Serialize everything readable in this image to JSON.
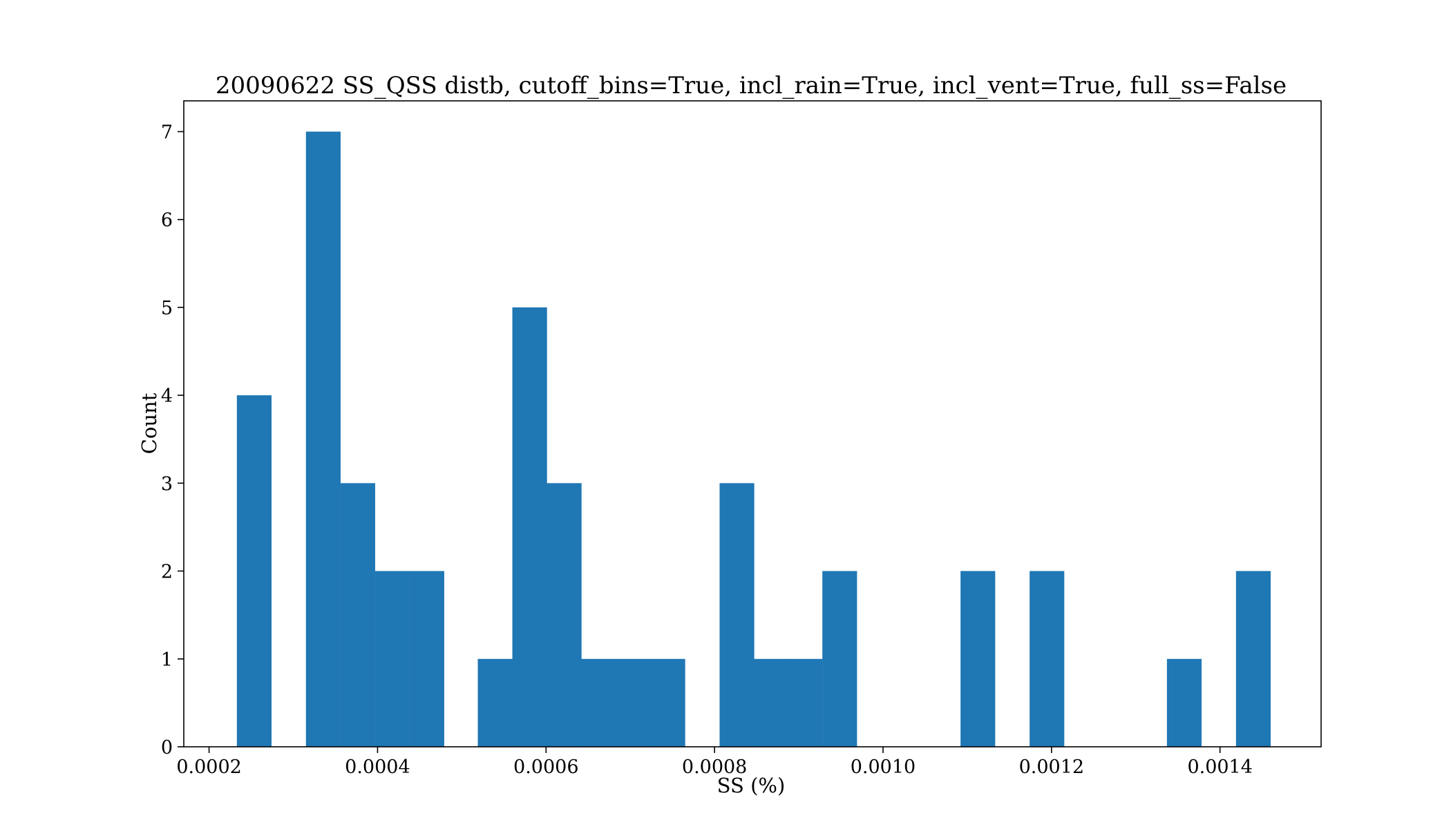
{
  "chart_data": {
    "type": "bar",
    "title": "20090622 SS_QSS distb, cutoff_bins=True, incl_rain=True, incl_vent=True, full_ss=False",
    "xlabel": "SS (%)",
    "ylabel": "Count",
    "xlim": [
      0.00017,
      0.00152
    ],
    "ylim": [
      0,
      7.35
    ],
    "bin_width": 4.09e-05,
    "bins": [
      {
        "start": 0.000233,
        "count": 4
      },
      {
        "start": 0.000315,
        "count": 7
      },
      {
        "start": 0.000356,
        "count": 3
      },
      {
        "start": 0.000397,
        "count": 2
      },
      {
        "start": 0.000438,
        "count": 2
      },
      {
        "start": 0.000519,
        "count": 1
      },
      {
        "start": 0.00056,
        "count": 5
      },
      {
        "start": 0.000601,
        "count": 3
      },
      {
        "start": 0.000642,
        "count": 1
      },
      {
        "start": 0.000683,
        "count": 1
      },
      {
        "start": 0.000724,
        "count": 1
      },
      {
        "start": 0.000806,
        "count": 3
      },
      {
        "start": 0.000847,
        "count": 1
      },
      {
        "start": 0.000887,
        "count": 1
      },
      {
        "start": 0.000928,
        "count": 2
      },
      {
        "start": 0.001092,
        "count": 2
      },
      {
        "start": 0.001174,
        "count": 2
      },
      {
        "start": 0.001337,
        "count": 1
      },
      {
        "start": 0.001419,
        "count": 2
      }
    ],
    "xticks": [
      {
        "value": 0.0002,
        "label": "0.0002"
      },
      {
        "value": 0.0004,
        "label": "0.0004"
      },
      {
        "value": 0.0006,
        "label": "0.0006"
      },
      {
        "value": 0.0008,
        "label": "0.0008"
      },
      {
        "value": 0.001,
        "label": "0.0010"
      },
      {
        "value": 0.0012,
        "label": "0.0012"
      },
      {
        "value": 0.0014,
        "label": "0.0014"
      }
    ],
    "yticks": [
      {
        "value": 0,
        "label": "0"
      },
      {
        "value": 1,
        "label": "1"
      },
      {
        "value": 2,
        "label": "2"
      },
      {
        "value": 3,
        "label": "3"
      },
      {
        "value": 4,
        "label": "4"
      },
      {
        "value": 5,
        "label": "5"
      },
      {
        "value": 6,
        "label": "6"
      },
      {
        "value": 7,
        "label": "7"
      }
    ],
    "bar_color": "#1f77b4",
    "grid": false,
    "legend": "none"
  }
}
